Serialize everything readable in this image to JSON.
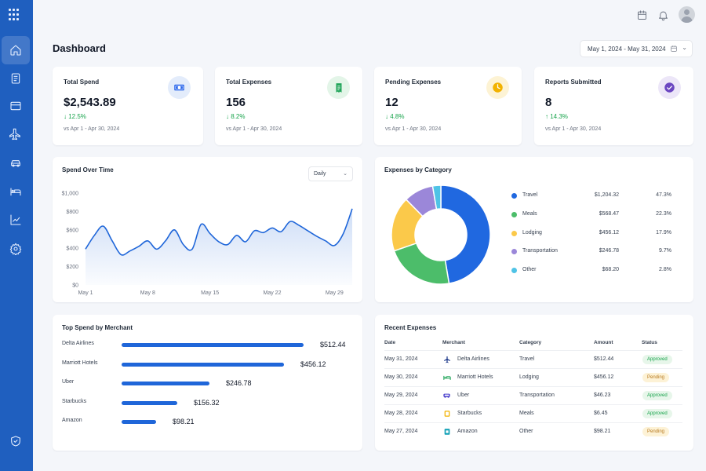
{
  "header": {
    "title": "Dashboard",
    "date_range": "May 1, 2024 - May 31, 2024",
    "icons": [
      "calendar-icon",
      "bell-icon",
      "avatar"
    ]
  },
  "sidebar": {
    "items": [
      {
        "icon": "grid-icon"
      },
      {
        "icon": "home-icon",
        "active": true
      },
      {
        "icon": "document-icon"
      },
      {
        "icon": "credit-card-icon"
      },
      {
        "icon": "airplane-icon"
      },
      {
        "icon": "car-icon"
      },
      {
        "icon": "bed-icon"
      },
      {
        "icon": "chart-icon"
      },
      {
        "icon": "gear-icon"
      },
      {
        "icon": "shield-check-icon"
      }
    ]
  },
  "kpis": [
    {
      "label": "Total Spend",
      "value": "$2,543.89",
      "change": "↓ 12.5%",
      "compare": "vs Apr 1 - Apr 30, 2024",
      "icon": "cash-icon",
      "icon_color": "#2563eb",
      "icon_bg": "#e3ecfb"
    },
    {
      "label": "Total Expenses",
      "value": "156",
      "change": "↓ 8.2%",
      "compare": "vs Apr 1 - Apr 30, 2024",
      "icon": "receipt-icon",
      "icon_color": "#22a55a",
      "icon_bg": "#e3f5e8"
    },
    {
      "label": "Pending Expenses",
      "value": "12",
      "change": "↓ 4.8%",
      "compare": "vs Apr 1 - Apr 30, 2024",
      "icon": "clock-icon",
      "icon_color": "#f2b200",
      "icon_bg": "#fdf3d4"
    },
    {
      "label": "Reports Submitted",
      "value": "8",
      "change": "↑ 14.3%",
      "compare": "vs Apr 1 - Apr 30, 2024",
      "icon": "check-circle-icon",
      "icon_color": "#6b46c1",
      "icon_bg": "#ece6f8"
    }
  ],
  "spend_over_time": {
    "title": "Spend Over Time",
    "period_select": "Daily"
  },
  "expenses_by_category": {
    "title": "Expenses by Category"
  },
  "top_merchants": {
    "title": "Top Spend by Merchant"
  },
  "recent_expenses": {
    "title": "Recent Expenses",
    "columns": [
      "Date",
      "Merchant",
      "Category",
      "Amount",
      "Status"
    ],
    "rows": [
      {
        "date": "May 31, 2024",
        "merchant": "Delta Airlines",
        "icon": "airplane-icon",
        "category": "Travel",
        "amount": "$512.44",
        "status": "Approved"
      },
      {
        "date": "May 30, 2024",
        "merchant": "Marriott Hotels",
        "icon": "bed-icon",
        "category": "Lodging",
        "amount": "$456.12",
        "status": "Pending"
      },
      {
        "date": "May 29, 2024",
        "merchant": "Uber",
        "icon": "car-icon",
        "category": "Transportation",
        "amount": "$46.23",
        "status": "Approved"
      },
      {
        "date": "May 28, 2024",
        "merchant": "Starbucks",
        "icon": "cup-icon",
        "category": "Meals",
        "amount": "$6.45",
        "status": "Approved"
      },
      {
        "date": "May 27, 2024",
        "merchant": "Amazon",
        "icon": "package-icon",
        "category": "Other",
        "amount": "$98.21",
        "status": "Pending"
      }
    ]
  },
  "chart_data": [
    {
      "type": "area",
      "title": "Spend Over Time",
      "x": [
        "May 1",
        "May 2",
        "May 3",
        "May 4",
        "May 5",
        "May 6",
        "May 7",
        "May 8",
        "May 9",
        "May 10",
        "May 11",
        "May 12",
        "May 13",
        "May 14",
        "May 15",
        "May 16",
        "May 17",
        "May 18",
        "May 19",
        "May 20",
        "May 21",
        "May 22",
        "May 23",
        "May 24",
        "May 25",
        "May 26",
        "May 27",
        "May 28",
        "May 29",
        "May 30",
        "May 31"
      ],
      "values": [
        390,
        540,
        640,
        480,
        330,
        370,
        420,
        480,
        390,
        480,
        600,
        440,
        390,
        660,
        560,
        470,
        440,
        540,
        470,
        590,
        570,
        620,
        580,
        690,
        650,
        590,
        530,
        480,
        430,
        560,
        830
      ],
      "xticks": [
        "May 1",
        "May 8",
        "May 15",
        "May 22",
        "May 29"
      ],
      "yticks": [
        "$0",
        "$200",
        "$400",
        "$600",
        "$800",
        "$1,000"
      ],
      "ylim": [
        0,
        1000
      ],
      "color": "#1f66d9"
    },
    {
      "type": "pie",
      "title": "Expenses by Category",
      "categories": [
        "Travel",
        "Meals",
        "Lodging",
        "Transportation",
        "Other"
      ],
      "values": [
        1204.32,
        568.47,
        456.12,
        246.78,
        68.2
      ],
      "amounts": [
        "$1,204.32",
        "$568.47",
        "$456.12",
        "$246.78",
        "$68.20"
      ],
      "percents": [
        "47.3%",
        "22.3%",
        "17.9%",
        "9.7%",
        "2.8%"
      ],
      "colors": [
        "#2068e0",
        "#4cbd6a",
        "#fbc94a",
        "#9b87d9",
        "#4fc3e6"
      ]
    },
    {
      "type": "bar",
      "title": "Top Spend by Merchant",
      "categories": [
        "Delta Airlines",
        "Marriott Hotels",
        "Uber",
        "Starbucks",
        "Amazon"
      ],
      "values": [
        512.44,
        456.12,
        246.78,
        156.32,
        98.21
      ],
      "labels": [
        "$512.44",
        "$456.12",
        "$246.78",
        "$156.32",
        "$98.21"
      ],
      "color": "#1f66d9"
    }
  ]
}
